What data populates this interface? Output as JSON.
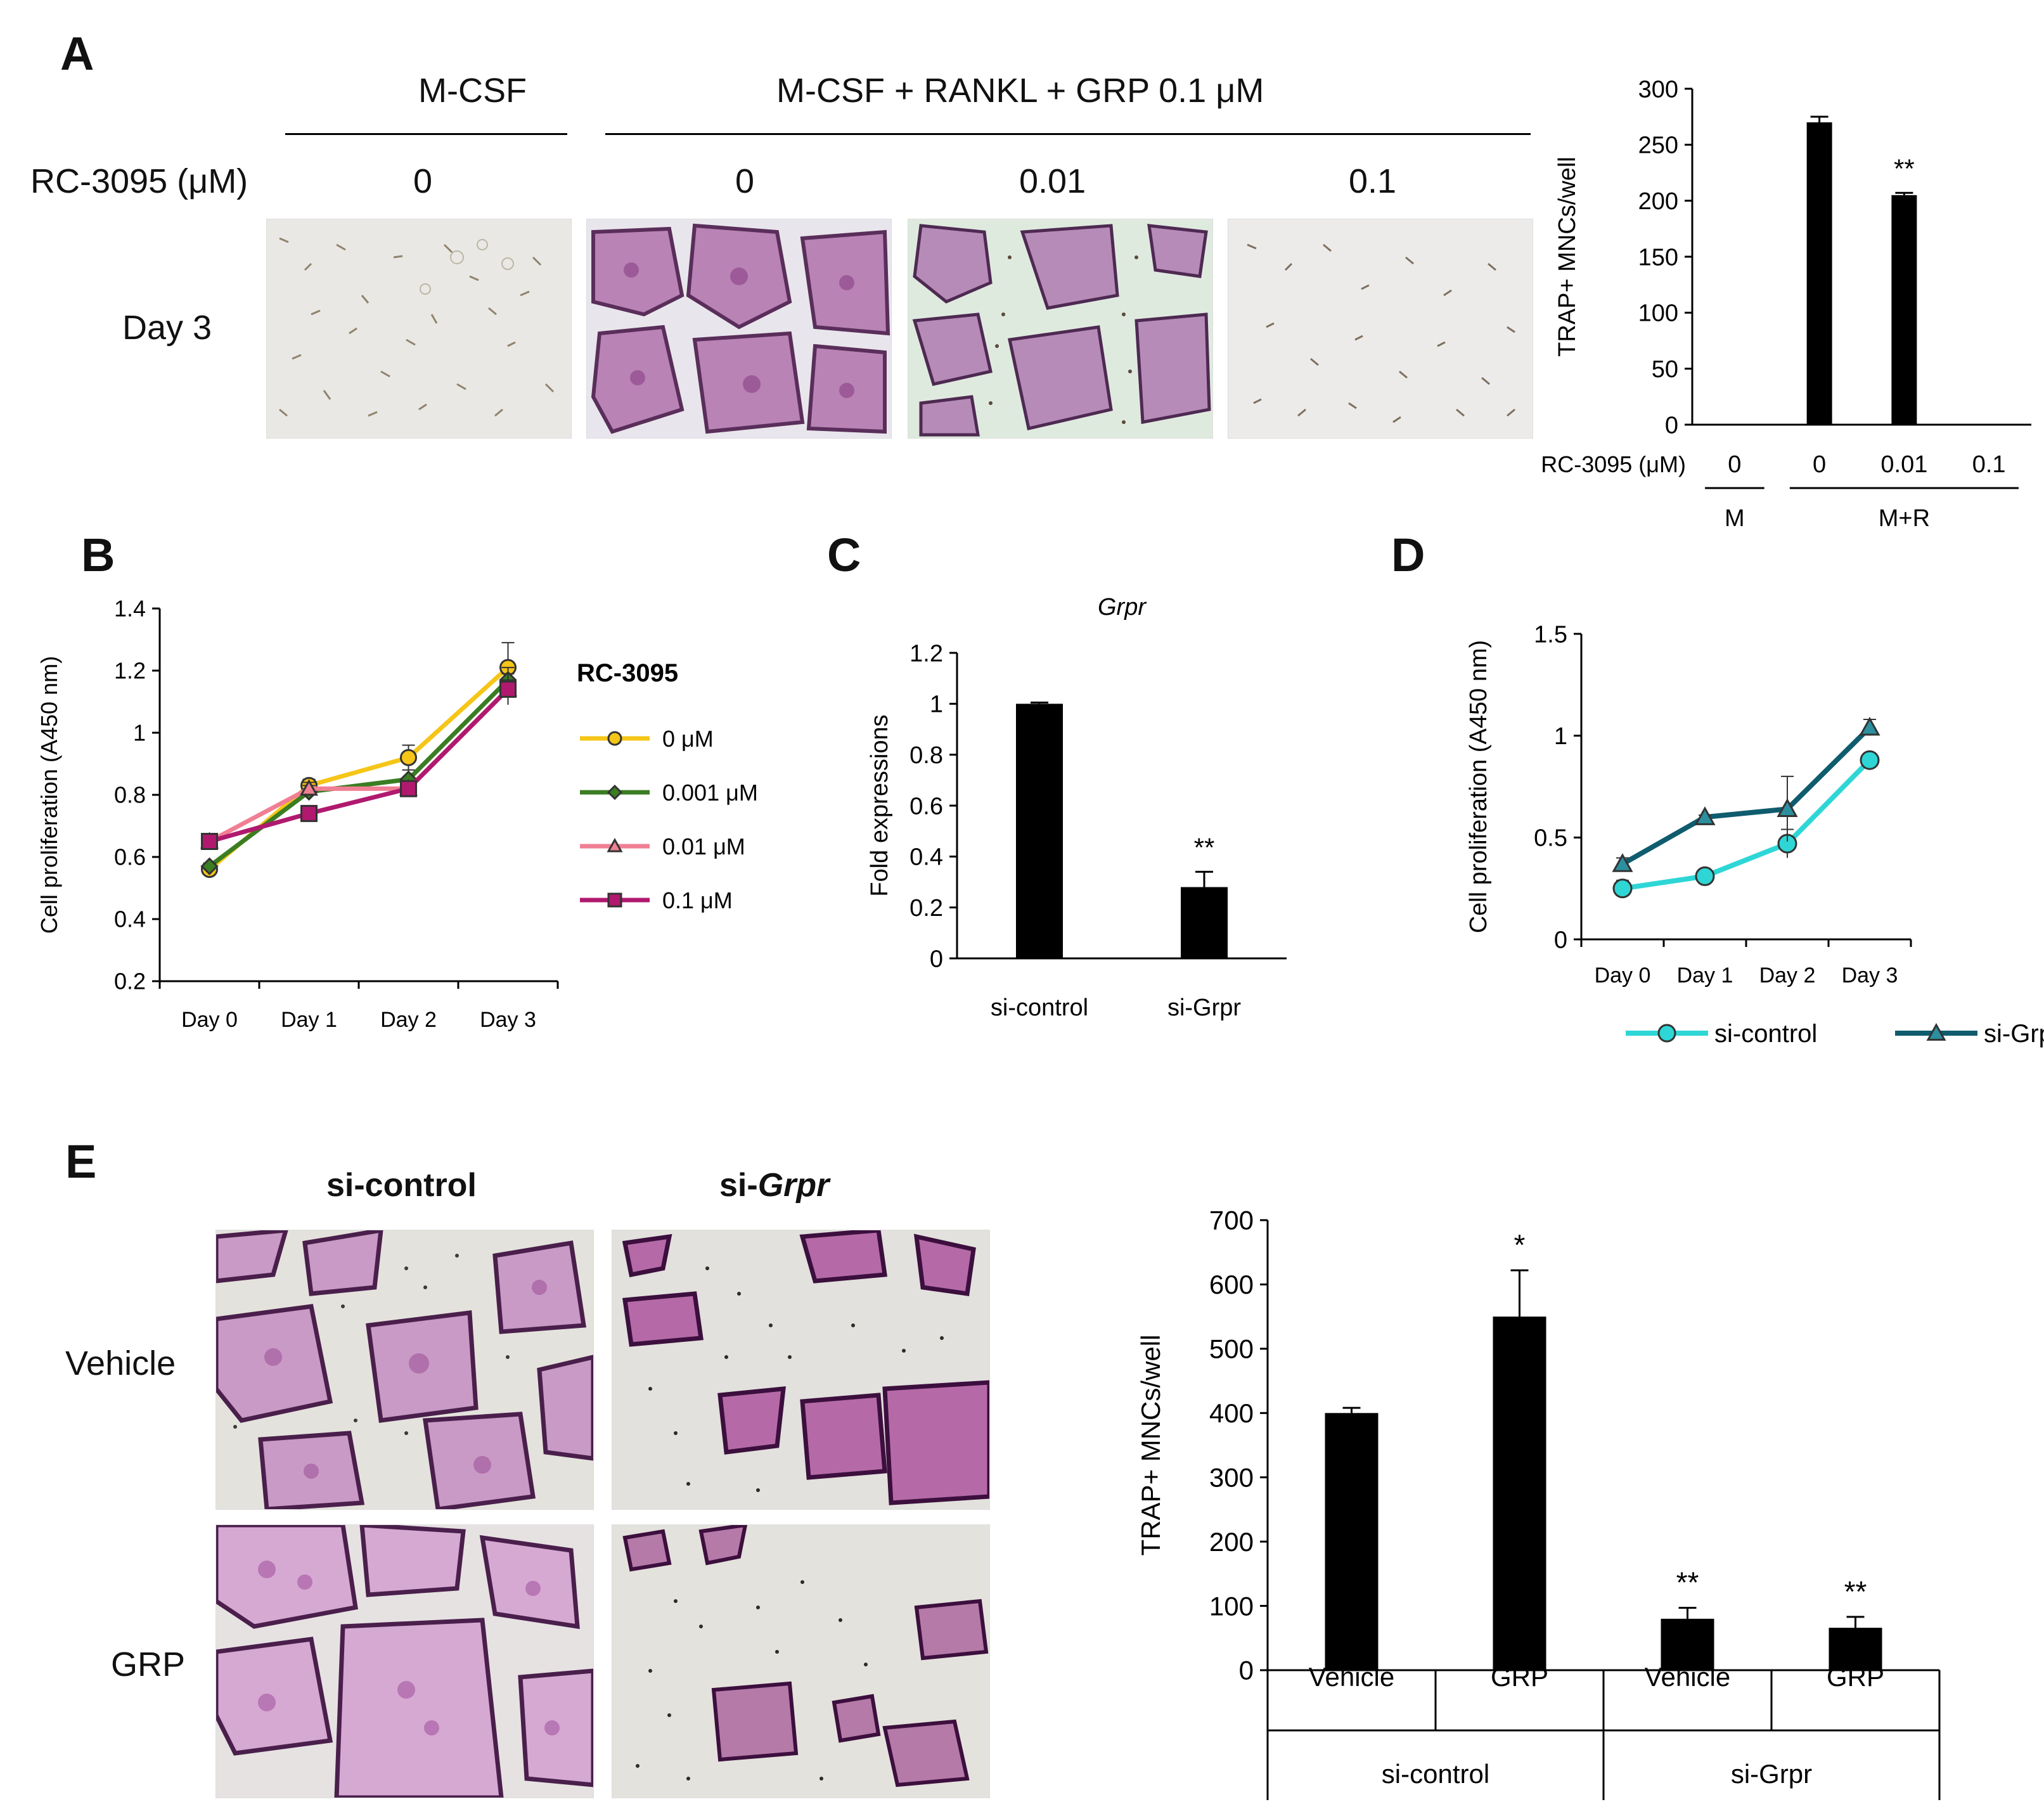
{
  "panel_letters": {
    "a": "A",
    "b": "B",
    "c": "C",
    "d": "D",
    "e": "E"
  },
  "panel_a": {
    "group_m": "M-CSF",
    "group_mr": "M-CSF  + RANKL  + GRP 0.1 μM",
    "dose_label": "RC-3095  (μM)",
    "doses": [
      "0",
      "0",
      "0.01",
      "0.1"
    ],
    "row_label": "Day 3"
  },
  "panel_e": {
    "col_ctrl": "si-control",
    "col_grpr_prefix": "si-",
    "col_grpr_gene": "Grpr",
    "row_vehicle": "Vehicle",
    "row_grp": "GRP"
  },
  "chart_data": [
    {
      "id": "A-bar",
      "type": "bar",
      "ylabel": "TRAP+ MNCs/well",
      "ylim": [
        0,
        300
      ],
      "yticks": [
        0,
        50,
        100,
        150,
        200,
        250,
        300
      ],
      "dose_label": "RC-3095 (μM)",
      "categories": [
        "0",
        "0",
        "0.01",
        "0.1"
      ],
      "values": [
        0,
        270,
        205,
        0
      ],
      "errors": [
        0,
        5,
        2,
        0
      ],
      "significance": [
        "",
        "",
        "**",
        ""
      ],
      "groups": [
        {
          "label": "M",
          "span": [
            0,
            0
          ]
        },
        {
          "label": "M+R",
          "span": [
            1,
            3
          ]
        }
      ]
    },
    {
      "id": "B-line",
      "type": "line",
      "ylabel": "Cell proliferation (A450 nm)",
      "ylim": [
        0.2,
        1.4
      ],
      "yticks": [
        "0.2",
        "0.4",
        "0.6",
        "0.8",
        "1",
        "1.2",
        "1.4"
      ],
      "categories": [
        "Day 0",
        "Day 1",
        "Day 2",
        "Day 3"
      ],
      "legend_title": "RC-3095",
      "series": [
        {
          "name": "0 μM",
          "color": "#f5c518",
          "marker": "circle",
          "values": [
            0.56,
            0.83,
            0.92,
            1.21
          ],
          "errors": [
            0.01,
            0.02,
            0.04,
            0.08
          ]
        },
        {
          "name": "0.001 μM",
          "color": "#3a7d22",
          "marker": "diamond",
          "values": [
            0.57,
            0.81,
            0.85,
            1.17
          ],
          "errors": [
            0.01,
            0.02,
            0.03,
            0.04
          ]
        },
        {
          "name": "0.01 μM",
          "color": "#f07f93",
          "marker": "triangle",
          "values": [
            0.65,
            0.82,
            0.82,
            1.14
          ],
          "errors": [
            0.01,
            0.02,
            0.02,
            0.03
          ]
        },
        {
          "name": "0.1 μM",
          "color": "#b0196e",
          "marker": "square",
          "values": [
            0.65,
            0.74,
            0.82,
            1.14
          ],
          "errors": [
            0.02,
            0.02,
            0.02,
            0.05
          ]
        }
      ]
    },
    {
      "id": "C-bar",
      "type": "bar",
      "title": "Grpr",
      "ylabel": "Fold expressions",
      "ylim": [
        0,
        1.2
      ],
      "yticks": [
        "0",
        "0.2",
        "0.4",
        "0.6",
        "0.8",
        "1",
        "1.2"
      ],
      "categories": [
        "si-control",
        "si-Grpr"
      ],
      "values": [
        1.0,
        0.28
      ],
      "errors": [
        0.005,
        0.06
      ],
      "significance": [
        "",
        "**"
      ]
    },
    {
      "id": "D-line",
      "type": "line",
      "ylabel": "Cell proliferation (A450 nm)",
      "ylim": [
        0,
        1.5
      ],
      "yticks": [
        "0",
        "0.5",
        "1",
        "1.5"
      ],
      "categories": [
        "Day 0",
        "Day 1",
        "Day 2",
        "Day 3"
      ],
      "series": [
        {
          "name": "si-control",
          "color": "#2fd6d6",
          "marker": "circle",
          "values": [
            0.25,
            0.31,
            0.47,
            0.88
          ],
          "errors": [
            0.04,
            0.01,
            0.07,
            0.02
          ]
        },
        {
          "name": "si-Grpr",
          "color": "#0f5c6e",
          "marker": "triangle",
          "values": [
            0.37,
            0.6,
            0.64,
            1.04
          ],
          "errors": [
            0.03,
            0.01,
            0.16,
            0.04
          ]
        }
      ]
    },
    {
      "id": "E-bar",
      "type": "bar",
      "ylabel": "TRAP+ MNCs/well",
      "ylim": [
        0,
        700
      ],
      "yticks": [
        0,
        100,
        200,
        300,
        400,
        500,
        600,
        700
      ],
      "categories": [
        "Vehicle",
        "GRP",
        "Vehicle",
        "GRP"
      ],
      "values": [
        400,
        550,
        80,
        66
      ],
      "errors": [
        8,
        72,
        17,
        17
      ],
      "significance": [
        "",
        "*",
        "**",
        "**"
      ],
      "groups": [
        {
          "label": "si-control",
          "span": [
            0,
            1
          ]
        },
        {
          "label": "si-Grpr",
          "span": [
            2,
            3
          ]
        }
      ]
    }
  ]
}
